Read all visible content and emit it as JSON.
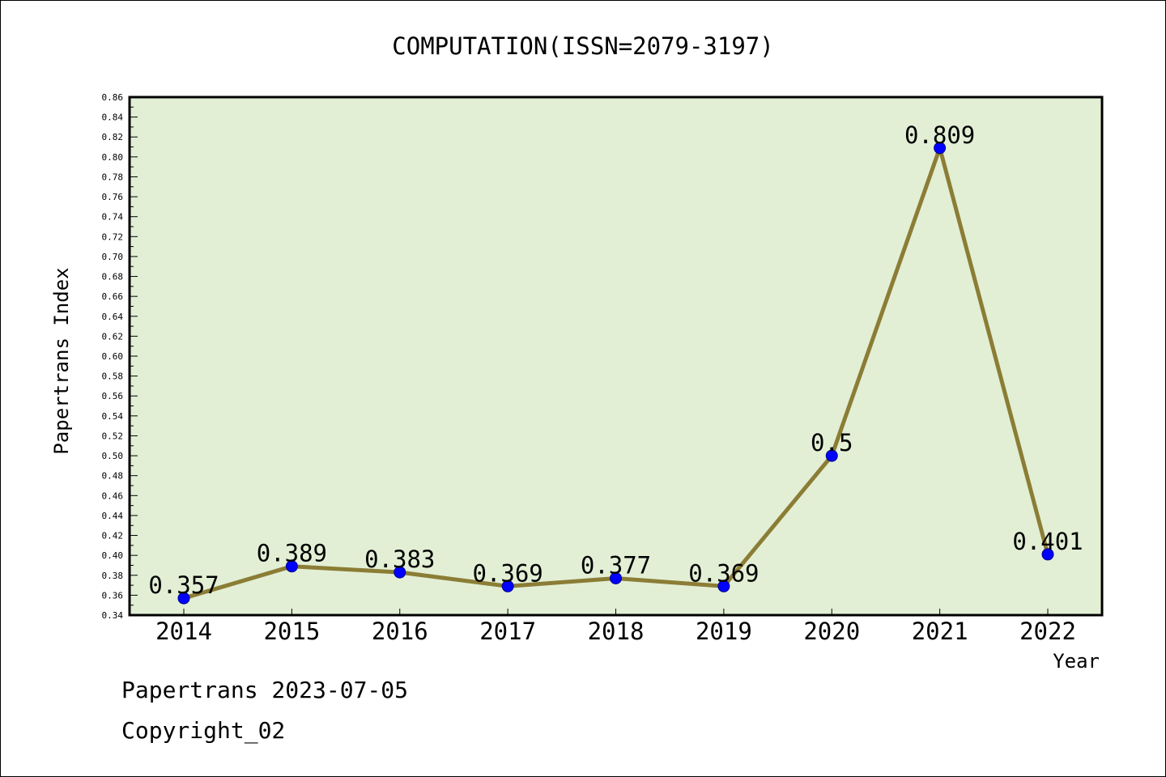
{
  "chart_data": {
    "type": "line",
    "title": "COMPUTATION(ISSN=2079-3197)",
    "xlabel": "Year",
    "ylabel": "Papertrans Index",
    "categories": [
      "2014",
      "2015",
      "2016",
      "2017",
      "2018",
      "2019",
      "2020",
      "2021",
      "2022"
    ],
    "series": [
      {
        "values": [
          0.357,
          0.389,
          0.383,
          0.369,
          0.377,
          0.369,
          0.5,
          0.809,
          0.401
        ],
        "labels": [
          "0.357",
          "0.389",
          "0.383",
          "0.369",
          "0.377",
          "0.369",
          "0.5",
          "0.809",
          "0.401"
        ]
      }
    ],
    "ylim": [
      0.34,
      0.86
    ],
    "yticks": [
      "0.34",
      "0.36",
      "0.38",
      "0.40",
      "0.42",
      "0.44",
      "0.46",
      "0.48",
      "0.50",
      "0.52",
      "0.54",
      "0.56",
      "0.58",
      "0.60",
      "0.62",
      "0.64",
      "0.66",
      "0.68",
      "0.70",
      "0.72",
      "0.74",
      "0.76",
      "0.78",
      "0.80",
      "0.82",
      "0.84",
      "0.86"
    ],
    "grid": false,
    "colors": {
      "plot_background": "#e2efd5",
      "line": "#8b7d35",
      "marker": "#0000ff"
    }
  },
  "footer": {
    "date_line": "Papertrans 2023-07-05",
    "copyright_line": "Copyright_02"
  }
}
